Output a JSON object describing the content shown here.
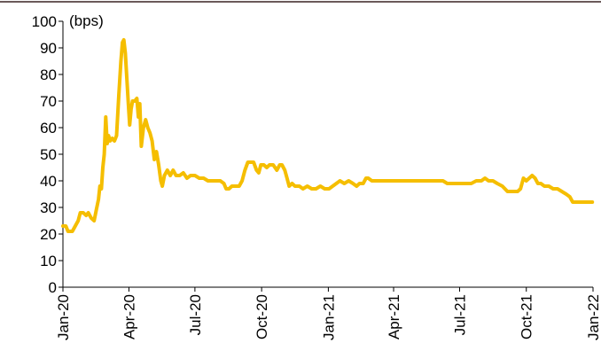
{
  "chart_data": {
    "type": "line",
    "title": "",
    "xlabel": "",
    "ylabel": "(bps)",
    "ylim": [
      0,
      100
    ],
    "yticks": [
      0,
      10,
      20,
      30,
      40,
      50,
      60,
      70,
      80,
      90,
      100
    ],
    "xlim": [
      "2020-01-01",
      "2022-01-01"
    ],
    "xticks": [
      {
        "date": "2020-01-01",
        "label": "Jan-20"
      },
      {
        "date": "2020-04-01",
        "label": "Apr-20"
      },
      {
        "date": "2020-07-01",
        "label": "Jul-20"
      },
      {
        "date": "2020-10-01",
        "label": "Oct-20"
      },
      {
        "date": "2021-01-01",
        "label": "Jan-21"
      },
      {
        "date": "2021-04-01",
        "label": "Apr-21"
      },
      {
        "date": "2021-07-01",
        "label": "Jul-21"
      },
      {
        "date": "2021-10-01",
        "label": "Oct-21"
      },
      {
        "date": "2022-01-01",
        "label": "Jan-22"
      }
    ],
    "grid": false,
    "colors": {
      "line": "#F5BE00",
      "axis": "#000000",
      "top_rule": "#6B5A5A"
    },
    "series": [
      {
        "points": [
          [
            "2020-01-01",
            23
          ],
          [
            "2020-01-05",
            23
          ],
          [
            "2020-01-08",
            21
          ],
          [
            "2020-01-14",
            21
          ],
          [
            "2020-01-18",
            23
          ],
          [
            "2020-01-22",
            25
          ],
          [
            "2020-01-25",
            28
          ],
          [
            "2020-01-29",
            28
          ],
          [
            "2020-02-02",
            27
          ],
          [
            "2020-02-05",
            28
          ],
          [
            "2020-02-09",
            26
          ],
          [
            "2020-02-13",
            25
          ],
          [
            "2020-02-16",
            29
          ],
          [
            "2020-02-19",
            33
          ],
          [
            "2020-02-21",
            38
          ],
          [
            "2020-02-23",
            37
          ],
          [
            "2020-02-25",
            45
          ],
          [
            "2020-02-27",
            50
          ],
          [
            "2020-02-29",
            64
          ],
          [
            "2020-03-02",
            54
          ],
          [
            "2020-03-04",
            57
          ],
          [
            "2020-03-06",
            55
          ],
          [
            "2020-03-09",
            56
          ],
          [
            "2020-03-12",
            55
          ],
          [
            "2020-03-15",
            57
          ],
          [
            "2020-03-18",
            72
          ],
          [
            "2020-03-21",
            85
          ],
          [
            "2020-03-23",
            92
          ],
          [
            "2020-03-25",
            93
          ],
          [
            "2020-03-27",
            88
          ],
          [
            "2020-03-29",
            79
          ],
          [
            "2020-03-31",
            70
          ],
          [
            "2020-04-02",
            61
          ],
          [
            "2020-04-04",
            67
          ],
          [
            "2020-04-06",
            70
          ],
          [
            "2020-04-09",
            70
          ],
          [
            "2020-04-12",
            71
          ],
          [
            "2020-04-14",
            64
          ],
          [
            "2020-04-16",
            69
          ],
          [
            "2020-04-18",
            53
          ],
          [
            "2020-04-21",
            60
          ],
          [
            "2020-04-24",
            63
          ],
          [
            "2020-04-27",
            60
          ],
          [
            "2020-04-30",
            58
          ],
          [
            "2020-05-03",
            55
          ],
          [
            "2020-05-06",
            48
          ],
          [
            "2020-05-09",
            51
          ],
          [
            "2020-05-12",
            46
          ],
          [
            "2020-05-15",
            40
          ],
          [
            "2020-05-17",
            38
          ],
          [
            "2020-05-20",
            42
          ],
          [
            "2020-05-24",
            44
          ],
          [
            "2020-05-28",
            42
          ],
          [
            "2020-06-01",
            44
          ],
          [
            "2020-06-05",
            42
          ],
          [
            "2020-06-10",
            42
          ],
          [
            "2020-06-15",
            43
          ],
          [
            "2020-06-20",
            41
          ],
          [
            "2020-06-25",
            42
          ],
          [
            "2020-07-01",
            42
          ],
          [
            "2020-07-07",
            41
          ],
          [
            "2020-07-13",
            41
          ],
          [
            "2020-07-19",
            40
          ],
          [
            "2020-07-25",
            40
          ],
          [
            "2020-08-01",
            40
          ],
          [
            "2020-08-05",
            40
          ],
          [
            "2020-08-10",
            39
          ],
          [
            "2020-08-13",
            37
          ],
          [
            "2020-08-17",
            37
          ],
          [
            "2020-08-21",
            38
          ],
          [
            "2020-08-26",
            38
          ],
          [
            "2020-08-31",
            38
          ],
          [
            "2020-09-04",
            40
          ],
          [
            "2020-09-08",
            44
          ],
          [
            "2020-09-12",
            47
          ],
          [
            "2020-09-16",
            47
          ],
          [
            "2020-09-20",
            47
          ],
          [
            "2020-09-24",
            44
          ],
          [
            "2020-09-27",
            43
          ],
          [
            "2020-09-30",
            46
          ],
          [
            "2020-10-04",
            46
          ],
          [
            "2020-10-08",
            45
          ],
          [
            "2020-10-12",
            46
          ],
          [
            "2020-10-17",
            46
          ],
          [
            "2020-10-22",
            44
          ],
          [
            "2020-10-26",
            46
          ],
          [
            "2020-10-29",
            46
          ],
          [
            "2020-11-02",
            44
          ],
          [
            "2020-11-05",
            41
          ],
          [
            "2020-11-08",
            38
          ],
          [
            "2020-11-12",
            39
          ],
          [
            "2020-11-16",
            38
          ],
          [
            "2020-11-22",
            38
          ],
          [
            "2020-11-27",
            37
          ],
          [
            "2020-12-03",
            38
          ],
          [
            "2020-12-09",
            37
          ],
          [
            "2020-12-15",
            37
          ],
          [
            "2020-12-21",
            38
          ],
          [
            "2020-12-27",
            37
          ],
          [
            "2021-01-02",
            37
          ],
          [
            "2021-01-07",
            38
          ],
          [
            "2021-01-12",
            39
          ],
          [
            "2021-01-17",
            40
          ],
          [
            "2021-01-23",
            39
          ],
          [
            "2021-01-29",
            40
          ],
          [
            "2021-02-04",
            39
          ],
          [
            "2021-02-09",
            38
          ],
          [
            "2021-02-13",
            39
          ],
          [
            "2021-02-18",
            39
          ],
          [
            "2021-02-22",
            41
          ],
          [
            "2021-02-25",
            41
          ],
          [
            "2021-03-02",
            40
          ],
          [
            "2021-03-10",
            40
          ],
          [
            "2021-03-20",
            40
          ],
          [
            "2021-04-01",
            40
          ],
          [
            "2021-04-15",
            40
          ],
          [
            "2021-05-01",
            40
          ],
          [
            "2021-05-15",
            40
          ],
          [
            "2021-06-01",
            40
          ],
          [
            "2021-06-08",
            40
          ],
          [
            "2021-06-14",
            39
          ],
          [
            "2021-06-22",
            39
          ],
          [
            "2021-07-01",
            39
          ],
          [
            "2021-07-10",
            39
          ],
          [
            "2021-07-17",
            39
          ],
          [
            "2021-07-24",
            40
          ],
          [
            "2021-07-31",
            40
          ],
          [
            "2021-08-05",
            41
          ],
          [
            "2021-08-10",
            40
          ],
          [
            "2021-08-16",
            40
          ],
          [
            "2021-08-22",
            39
          ],
          [
            "2021-08-29",
            38
          ],
          [
            "2021-09-05",
            36
          ],
          [
            "2021-09-12",
            36
          ],
          [
            "2021-09-19",
            36
          ],
          [
            "2021-09-23",
            37
          ],
          [
            "2021-09-27",
            41
          ],
          [
            "2021-10-01",
            40
          ],
          [
            "2021-10-05",
            41
          ],
          [
            "2021-10-09",
            42
          ],
          [
            "2021-10-13",
            41
          ],
          [
            "2021-10-17",
            39
          ],
          [
            "2021-10-21",
            39
          ],
          [
            "2021-10-26",
            38
          ],
          [
            "2021-11-01",
            38
          ],
          [
            "2021-11-07",
            37
          ],
          [
            "2021-11-13",
            37
          ],
          [
            "2021-11-19",
            36
          ],
          [
            "2021-11-25",
            35
          ],
          [
            "2021-11-30",
            34
          ],
          [
            "2021-12-04",
            32
          ],
          [
            "2021-12-12",
            32
          ],
          [
            "2021-12-20",
            32
          ],
          [
            "2021-12-31",
            32
          ]
        ]
      }
    ]
  }
}
